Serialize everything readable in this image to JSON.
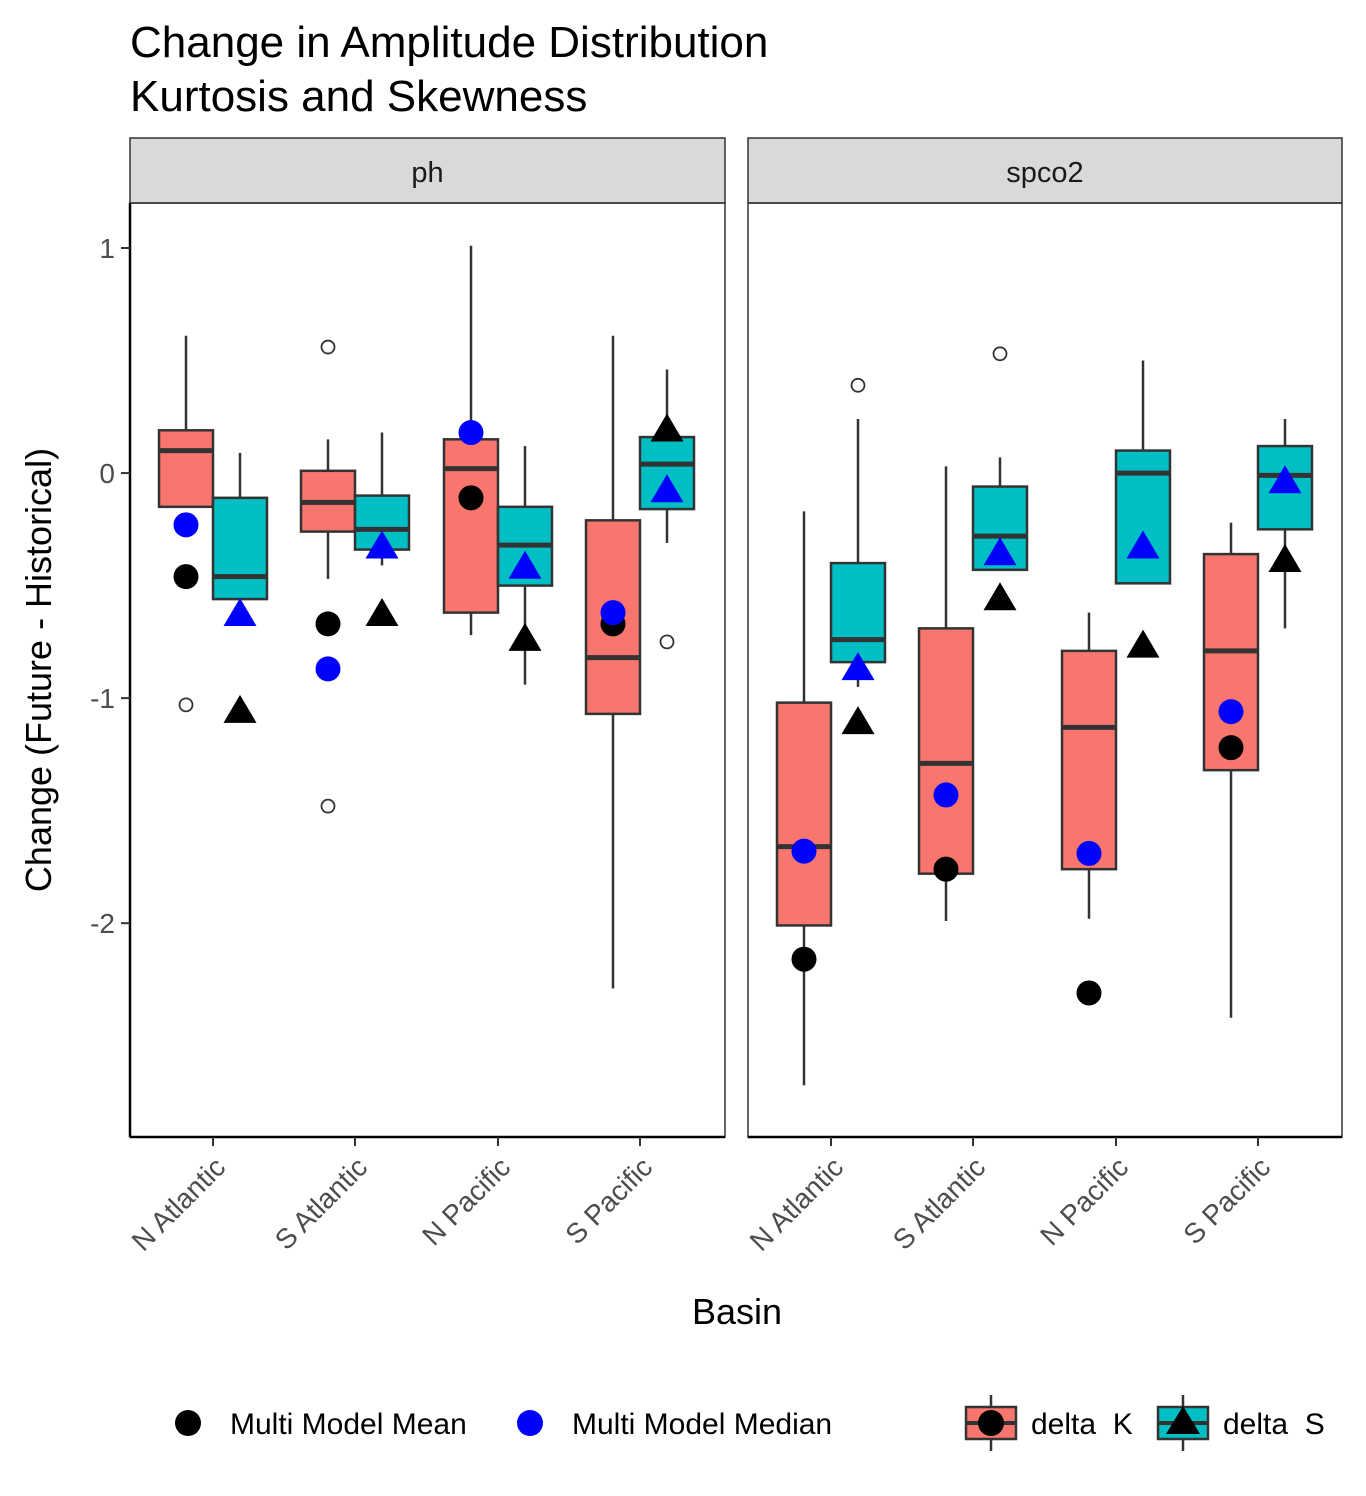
{
  "chart_data": {
    "type": "boxplot",
    "title": "Change in Amplitude Distribution",
    "subtitle": "Kurtosis and Skewness",
    "xlabel": "Basin",
    "ylabel": "Change (Future - Historical)",
    "ylim": [
      -2.95,
      1.2
    ],
    "yticks": [
      1,
      0,
      -1,
      -2
    ],
    "ytick_labels": [
      "1",
      "0",
      "-1",
      "-2"
    ],
    "categories": [
      "N Atlantic",
      "S Atlantic",
      "N Pacific",
      "S Pacific"
    ],
    "grid": false,
    "colors": {
      "delta_k_fill": "#F8766D",
      "delta_s_fill": "#00BFC4",
      "box_stroke": "#333333",
      "mean": "#000000",
      "median": "#0000FF",
      "strip_fill": "#D9D9D9"
    },
    "panels": [
      {
        "name": "ph",
        "series": [
          {
            "name": "delta  K",
            "boxes": [
              {
                "category": "N Atlantic",
                "whisker_low": -0.15,
                "q1": -0.15,
                "median": 0.1,
                "q3": 0.19,
                "whisker_high": 0.61,
                "outliers": [
                  -1.03
                ],
                "mean": -0.46,
                "multi_median": -0.23
              },
              {
                "category": "S Atlantic",
                "whisker_low": -0.47,
                "q1": -0.26,
                "median": -0.13,
                "q3": 0.01,
                "whisker_high": 0.15,
                "outliers": [
                  0.56,
                  -1.48
                ],
                "mean": -0.67,
                "multi_median": -0.87
              },
              {
                "category": "N Pacific",
                "whisker_low": -0.72,
                "q1": -0.62,
                "median": 0.02,
                "q3": 0.15,
                "whisker_high": 1.01,
                "outliers": [],
                "mean": -0.11,
                "multi_median": 0.18
              },
              {
                "category": "S Pacific",
                "whisker_low": -2.29,
                "q1": -1.07,
                "median": -0.82,
                "q3": -0.21,
                "whisker_high": 0.61,
                "outliers": [],
                "mean": -0.67,
                "multi_median": -0.62
              }
            ]
          },
          {
            "name": "delta  S",
            "boxes": [
              {
                "category": "N Atlantic",
                "whisker_low": -0.56,
                "q1": -0.56,
                "median": -0.46,
                "q3": -0.11,
                "whisker_high": 0.09,
                "outliers": [],
                "mean": -1.06,
                "multi_median": -0.63
              },
              {
                "category": "S Atlantic",
                "whisker_low": -0.41,
                "q1": -0.34,
                "median": -0.25,
                "q3": -0.1,
                "whisker_high": 0.18,
                "outliers": [],
                "mean": -0.63,
                "multi_median": -0.33
              },
              {
                "category": "N Pacific",
                "whisker_low": -0.94,
                "q1": -0.5,
                "median": -0.32,
                "q3": -0.15,
                "whisker_high": 0.12,
                "outliers": [],
                "mean": -0.74,
                "multi_median": -0.42
              },
              {
                "category": "S Pacific",
                "whisker_low": -0.31,
                "q1": -0.16,
                "median": 0.04,
                "q3": 0.16,
                "whisker_high": 0.46,
                "outliers": [
                  -0.75
                ],
                "mean": 0.19,
                "multi_median": -0.08
              }
            ]
          }
        ]
      },
      {
        "name": "spco2",
        "series": [
          {
            "name": "delta  K",
            "boxes": [
              {
                "category": "N Atlantic",
                "whisker_low": -2.72,
                "q1": -2.01,
                "median": -1.66,
                "q3": -1.02,
                "whisker_high": -0.17,
                "outliers": [],
                "mean": -2.16,
                "multi_median": -1.68
              },
              {
                "category": "S Atlantic",
                "whisker_low": -1.99,
                "q1": -1.78,
                "median": -1.29,
                "q3": -0.69,
                "whisker_high": 0.03,
                "outliers": [],
                "mean": -1.76,
                "multi_median": -1.43
              },
              {
                "category": "N Pacific",
                "whisker_low": -1.98,
                "q1": -1.76,
                "median": -1.13,
                "q3": -0.79,
                "whisker_high": -0.62,
                "outliers": [],
                "mean": -2.31,
                "multi_median": -1.69
              },
              {
                "category": "S Pacific",
                "whisker_low": -2.42,
                "q1": -1.32,
                "median": -0.79,
                "q3": -0.36,
                "whisker_high": -0.22,
                "outliers": [],
                "mean": -1.22,
                "multi_median": -1.06
              }
            ]
          },
          {
            "name": "delta  S",
            "boxes": [
              {
                "category": "N Atlantic",
                "whisker_low": -0.95,
                "q1": -0.84,
                "median": -0.74,
                "q3": -0.4,
                "whisker_high": 0.24,
                "outliers": [
                  0.39
                ],
                "mean": -1.11,
                "multi_median": -0.87
              },
              {
                "category": "S Atlantic",
                "whisker_low": -0.43,
                "q1": -0.43,
                "median": -0.28,
                "q3": -0.06,
                "whisker_high": 0.07,
                "outliers": [
                  0.53
                ],
                "mean": -0.56,
                "multi_median": -0.36
              },
              {
                "category": "N Pacific",
                "whisker_low": -0.49,
                "q1": -0.49,
                "median": 0.0,
                "q3": 0.1,
                "whisker_high": 0.5,
                "outliers": [],
                "mean": -0.77,
                "multi_median": -0.33
              },
              {
                "category": "S Pacific",
                "whisker_low": -0.69,
                "q1": -0.25,
                "median": -0.01,
                "q3": 0.12,
                "whisker_high": 0.24,
                "outliers": [],
                "mean": -0.39,
                "multi_median": -0.04
              }
            ]
          }
        ]
      }
    ],
    "legend": {
      "placement": "bottom",
      "points": [
        {
          "label": "Multi Model Mean",
          "color": "#000000"
        },
        {
          "label": "Multi Model Median",
          "color": "#0000FF"
        }
      ],
      "fills": [
        {
          "label": "delta  K",
          "color": "#F8766D",
          "shape": "circle"
        },
        {
          "label": "delta  S",
          "color": "#00BFC4",
          "shape": "triangle"
        }
      ]
    }
  }
}
